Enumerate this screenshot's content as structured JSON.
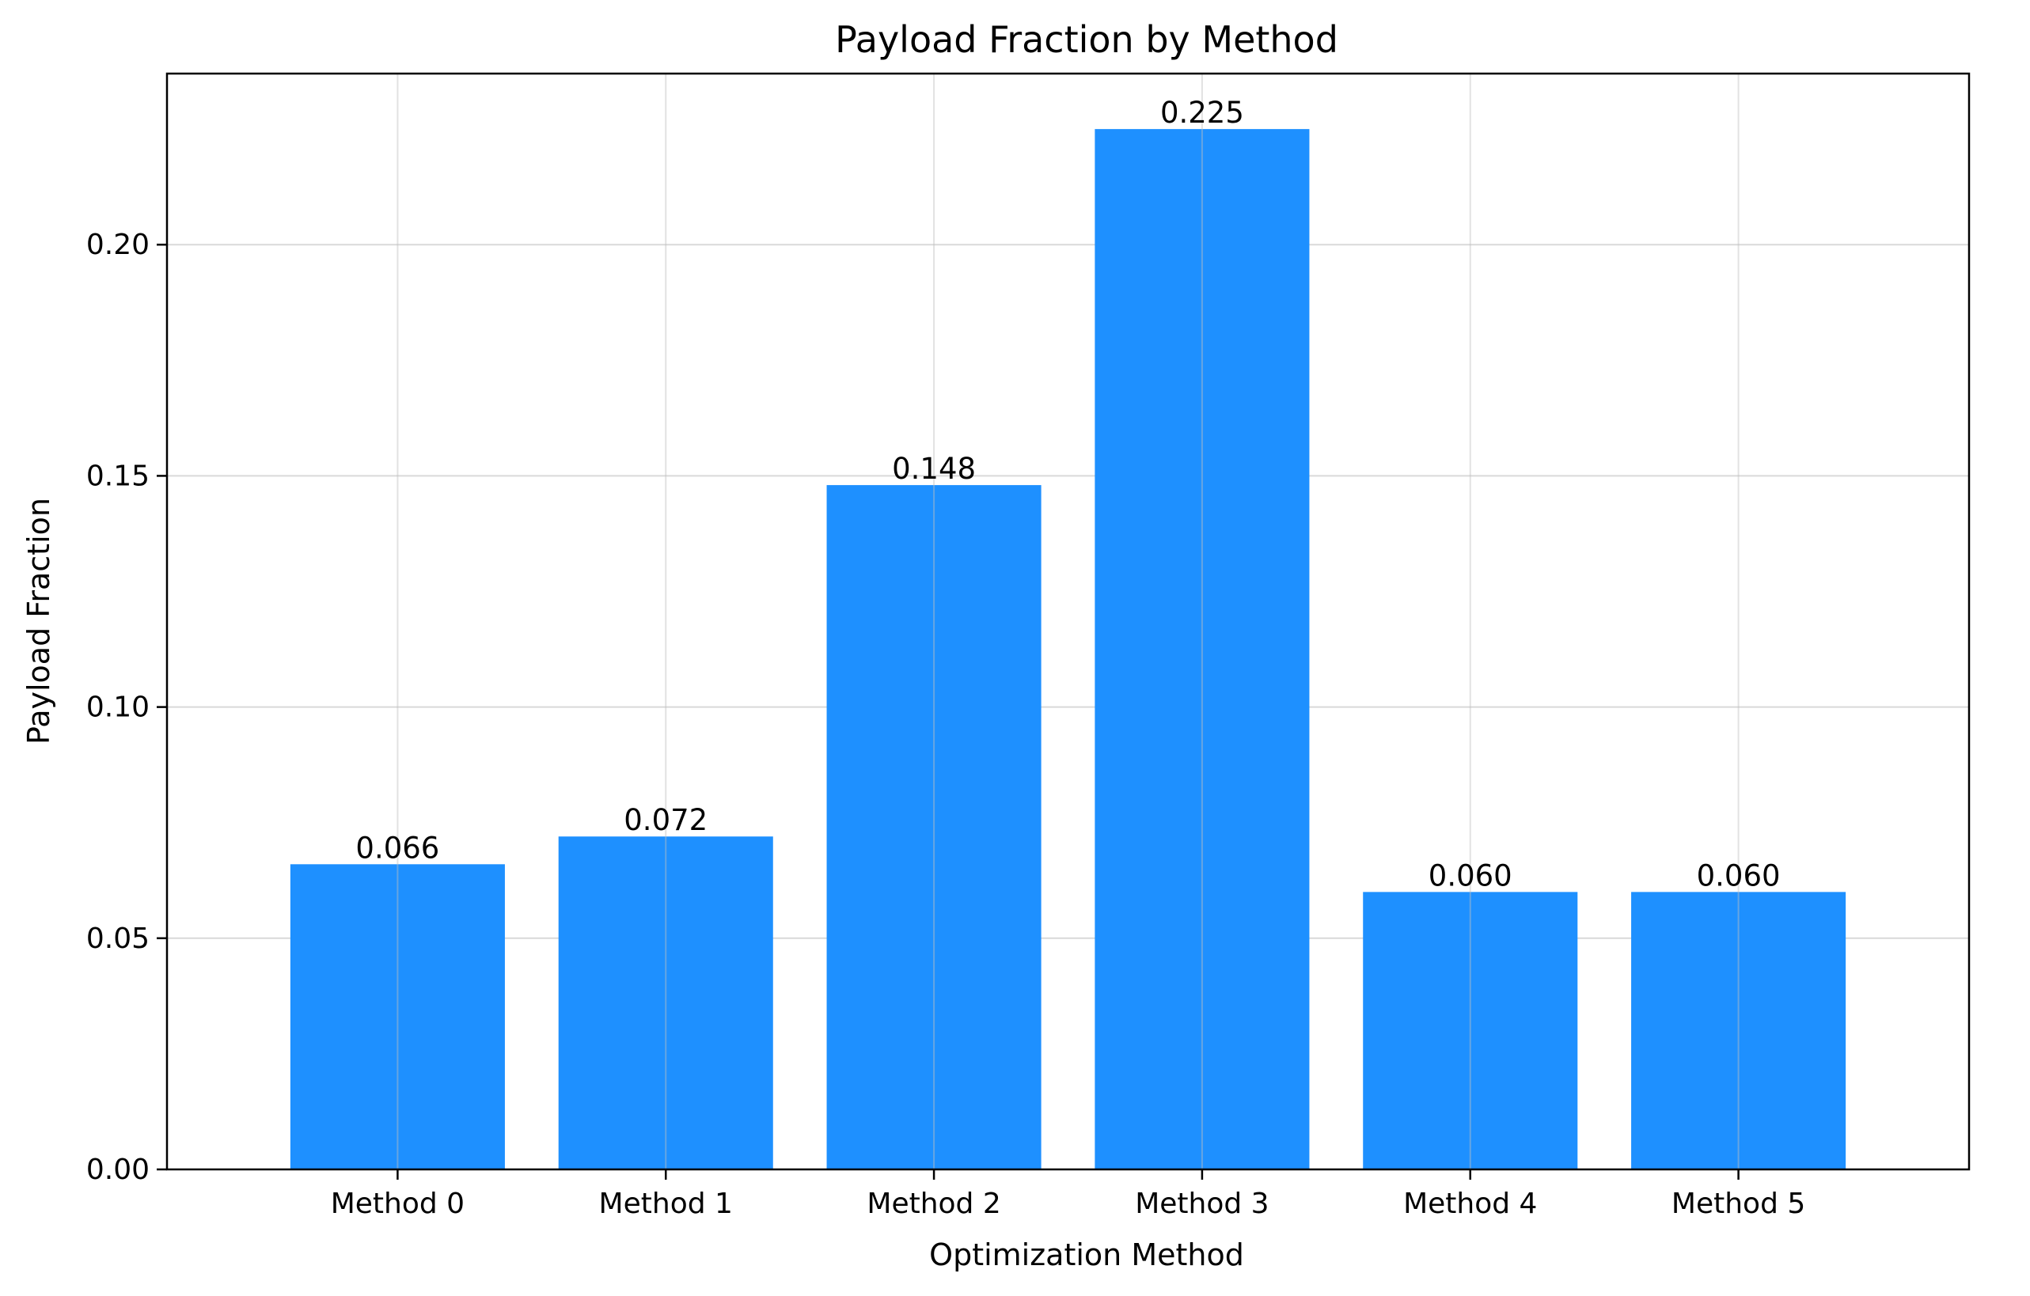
{
  "chart_data": {
    "type": "bar",
    "title": "Payload Fraction by Method",
    "xlabel": "Optimization Method",
    "ylabel": "Payload Fraction",
    "categories": [
      "Method 0",
      "Method 1",
      "Method 2",
      "Method 3",
      "Method 4",
      "Method 5"
    ],
    "values": [
      0.066,
      0.072,
      0.148,
      0.225,
      0.06,
      0.06
    ],
    "data_labels": [
      "0.066",
      "0.072",
      "0.148",
      "0.225",
      "0.060",
      "0.060"
    ],
    "ylim": [
      0,
      0.237
    ],
    "yticks": [
      0.0,
      0.05,
      0.1,
      0.15,
      0.2
    ],
    "ytick_labels": [
      "0.00",
      "0.05",
      "0.10",
      "0.15",
      "0.20"
    ],
    "grid": true,
    "bar_color": "#1e90ff"
  }
}
